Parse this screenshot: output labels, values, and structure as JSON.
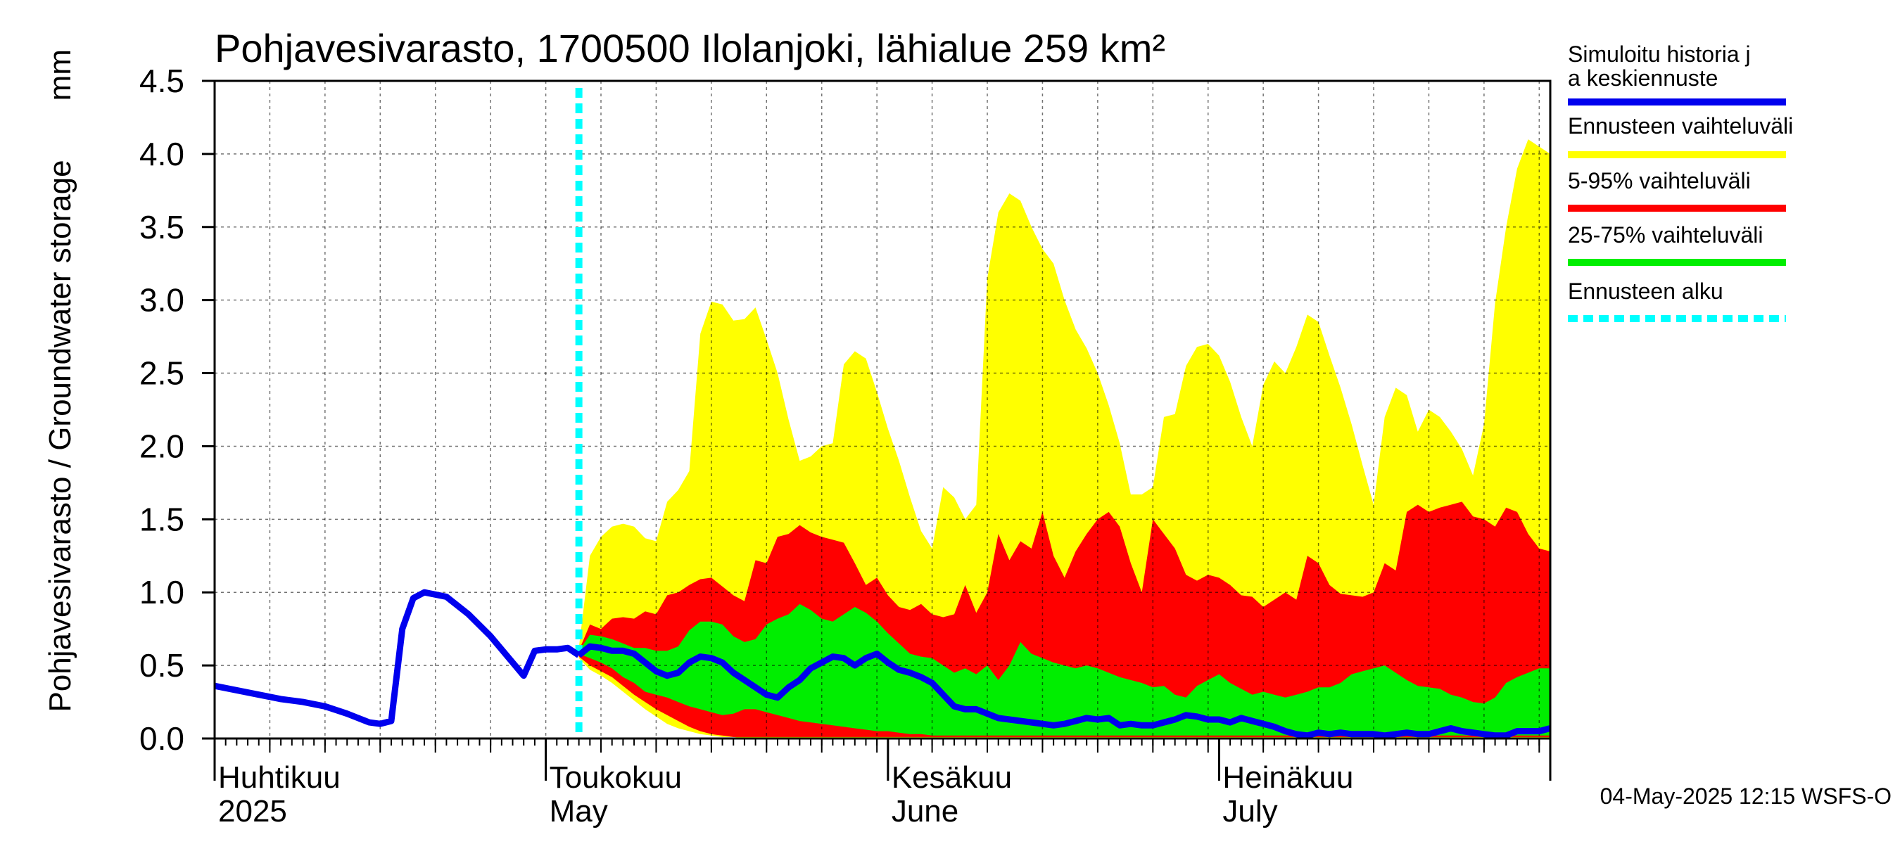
{
  "chart_data": {
    "type": "area",
    "title": "Pohjavesivarasto, 1700500 Ilolanjoki, lähialue 259 km²",
    "ylabel": "Pohjavesivarasto / Groundwater storage",
    "yunit": "mm",
    "ylim": [
      0,
      4.5
    ],
    "yticks": [
      "0.0",
      "0.5",
      "1.0",
      "1.5",
      "2.0",
      "2.5",
      "3.0",
      "3.5",
      "4.0",
      "4.5"
    ],
    "xlim": [
      "2025-04-01",
      "2025-07-31"
    ],
    "grid": true,
    "legend_position": "right",
    "forecast_start": "2025-05-04",
    "month_labels": [
      {
        "date": "2025-04-01",
        "line1": "Huhtikuu",
        "line2": "2025"
      },
      {
        "date": "2025-05-01",
        "line1": "Toukokuu",
        "line2": "May"
      },
      {
        "date": "2025-06-01",
        "line1": "Kesäkuu",
        "line2": "June"
      },
      {
        "date": "2025-07-01",
        "line1": "Heinäkuu",
        "line2": "July"
      }
    ],
    "colors": {
      "history": "#0000ee",
      "full_range": "#ffff00",
      "range_5_95": "#ff0000",
      "range_25_75": "#00ee00",
      "forecast_start": "#00ffff"
    },
    "legend": [
      {
        "key": "history",
        "label": "Simuloitu historia ja keskiennuste"
      },
      {
        "key": "full_range",
        "label": "Ennusteen vaihteluväli"
      },
      {
        "key": "range_5_95",
        "label": "5-95% vaihteluväli"
      },
      {
        "key": "range_25_75",
        "label": "25-75% vaihteluväli"
      },
      {
        "key": "forecast_start",
        "label": "Ennusteen alku"
      }
    ],
    "history": {
      "x": [
        "2025-04-01",
        "2025-04-03",
        "2025-04-05",
        "2025-04-07",
        "2025-04-09",
        "2025-04-11",
        "2025-04-13",
        "2025-04-15",
        "2025-04-16",
        "2025-04-17",
        "2025-04-18",
        "2025-04-19",
        "2025-04-20",
        "2025-04-22",
        "2025-04-24",
        "2025-04-26",
        "2025-04-28",
        "2025-04-29",
        "2025-04-30",
        "2025-05-01",
        "2025-05-02",
        "2025-05-03",
        "2025-05-04"
      ],
      "values": [
        0.36,
        0.33,
        0.3,
        0.27,
        0.25,
        0.22,
        0.17,
        0.11,
        0.1,
        0.12,
        0.75,
        0.96,
        1.0,
        0.97,
        0.85,
        0.7,
        0.52,
        0.43,
        0.6,
        0.61,
        0.61,
        0.62,
        0.57
      ]
    },
    "forecast": {
      "x": [
        "2025-05-04",
        "2025-05-05",
        "2025-05-06",
        "2025-05-07",
        "2025-05-08",
        "2025-05-09",
        "2025-05-10",
        "2025-05-11",
        "2025-05-12",
        "2025-05-13",
        "2025-05-14",
        "2025-05-15",
        "2025-05-16",
        "2025-05-17",
        "2025-05-18",
        "2025-05-19",
        "2025-05-20",
        "2025-05-21",
        "2025-05-22",
        "2025-05-23",
        "2025-05-24",
        "2025-05-25",
        "2025-05-26",
        "2025-05-27",
        "2025-05-28",
        "2025-05-29",
        "2025-05-30",
        "2025-05-31",
        "2025-06-01",
        "2025-06-02",
        "2025-06-03",
        "2025-06-04",
        "2025-06-05",
        "2025-06-06",
        "2025-06-07",
        "2025-06-08",
        "2025-06-09",
        "2025-06-10",
        "2025-06-11",
        "2025-06-12",
        "2025-06-13",
        "2025-06-14",
        "2025-06-15",
        "2025-06-16",
        "2025-06-17",
        "2025-06-18",
        "2025-06-19",
        "2025-06-20",
        "2025-06-21",
        "2025-06-22",
        "2025-06-23",
        "2025-06-24",
        "2025-06-25",
        "2025-06-26",
        "2025-06-27",
        "2025-06-28",
        "2025-06-29",
        "2025-06-30",
        "2025-07-01",
        "2025-07-02",
        "2025-07-03",
        "2025-07-04",
        "2025-07-05",
        "2025-07-06",
        "2025-07-07",
        "2025-07-08",
        "2025-07-09",
        "2025-07-10",
        "2025-07-11",
        "2025-07-12",
        "2025-07-13",
        "2025-07-14",
        "2025-07-15",
        "2025-07-16",
        "2025-07-17",
        "2025-07-18",
        "2025-07-19",
        "2025-07-20",
        "2025-07-21",
        "2025-07-22",
        "2025-07-23",
        "2025-07-24",
        "2025-07-25",
        "2025-07-26",
        "2025-07-27",
        "2025-07-28",
        "2025-07-29",
        "2025-07-30",
        "2025-07-31"
      ],
      "max": [
        0.62,
        1.25,
        1.38,
        1.45,
        1.47,
        1.45,
        1.37,
        1.35,
        1.62,
        1.7,
        1.83,
        2.77,
        2.99,
        2.97,
        2.86,
        2.87,
        2.95,
        2.73,
        2.5,
        2.18,
        1.9,
        1.93,
        2.0,
        2.02,
        2.56,
        2.65,
        2.6,
        2.37,
        2.12,
        1.9,
        1.65,
        1.42,
        1.3,
        1.72,
        1.65,
        1.5,
        1.6,
        3.15,
        3.6,
        3.73,
        3.68,
        3.5,
        3.35,
        3.25,
        3.0,
        2.8,
        2.67,
        2.5,
        2.28,
        2.02,
        1.67,
        1.67,
        1.72,
        2.2,
        2.22,
        2.55,
        2.68,
        2.7,
        2.62,
        2.44,
        2.2,
        2.0,
        2.42,
        2.58,
        2.5,
        2.68,
        2.9,
        2.85,
        2.62,
        2.4,
        2.15,
        1.87,
        1.6,
        2.2,
        2.4,
        2.35,
        2.1,
        2.25,
        2.2,
        2.1,
        1.98,
        1.8,
        2.15,
        2.98,
        3.5,
        3.9,
        4.1,
        4.05,
        4.0
      ],
      "p95": [
        0.6,
        0.78,
        0.75,
        0.82,
        0.83,
        0.82,
        0.87,
        0.85,
        0.98,
        1.0,
        1.05,
        1.09,
        1.1,
        1.04,
        0.98,
        0.94,
        1.22,
        1.2,
        1.38,
        1.4,
        1.46,
        1.41,
        1.38,
        1.36,
        1.34,
        1.2,
        1.05,
        1.1,
        0.98,
        0.9,
        0.88,
        0.92,
        0.85,
        0.83,
        0.85,
        1.05,
        0.86,
        1.0,
        1.4,
        1.22,
        1.35,
        1.3,
        1.55,
        1.25,
        1.1,
        1.28,
        1.4,
        1.5,
        1.55,
        1.45,
        1.2,
        1.0,
        1.5,
        1.4,
        1.3,
        1.12,
        1.08,
        1.12,
        1.1,
        1.05,
        0.98,
        0.97,
        0.9,
        0.95,
        1.0,
        0.95,
        1.25,
        1.2,
        1.05,
        0.99,
        0.98,
        0.97,
        1.0,
        1.2,
        1.15,
        1.55,
        1.6,
        1.55,
        1.58,
        1.6,
        1.62,
        1.52,
        1.5,
        1.45,
        1.58,
        1.55,
        1.4,
        1.3,
        1.28
      ],
      "p75": [
        0.6,
        0.71,
        0.7,
        0.68,
        0.65,
        0.62,
        0.62,
        0.6,
        0.6,
        0.63,
        0.74,
        0.8,
        0.8,
        0.78,
        0.7,
        0.66,
        0.68,
        0.78,
        0.82,
        0.85,
        0.92,
        0.88,
        0.82,
        0.8,
        0.85,
        0.9,
        0.86,
        0.8,
        0.72,
        0.65,
        0.58,
        0.56,
        0.55,
        0.5,
        0.45,
        0.48,
        0.44,
        0.5,
        0.4,
        0.5,
        0.66,
        0.58,
        0.55,
        0.52,
        0.5,
        0.48,
        0.5,
        0.48,
        0.45,
        0.42,
        0.4,
        0.38,
        0.35,
        0.36,
        0.3,
        0.28,
        0.36,
        0.4,
        0.44,
        0.38,
        0.34,
        0.3,
        0.32,
        0.3,
        0.28,
        0.3,
        0.32,
        0.35,
        0.35,
        0.38,
        0.44,
        0.46,
        0.48,
        0.5,
        0.45,
        0.4,
        0.36,
        0.35,
        0.34,
        0.3,
        0.28,
        0.25,
        0.24,
        0.28,
        0.38,
        0.42,
        0.45,
        0.48,
        0.48
      ],
      "p25": [
        0.58,
        0.55,
        0.52,
        0.48,
        0.42,
        0.38,
        0.32,
        0.3,
        0.28,
        0.25,
        0.22,
        0.2,
        0.18,
        0.16,
        0.17,
        0.2,
        0.2,
        0.18,
        0.16,
        0.14,
        0.12,
        0.11,
        0.1,
        0.09,
        0.08,
        0.07,
        0.06,
        0.05,
        0.05,
        0.04,
        0.03,
        0.03,
        0.02,
        0.02,
        0.02,
        0.02,
        0.02,
        0.02,
        0.02,
        0.02,
        0.02,
        0.02,
        0.02,
        0.02,
        0.02,
        0.02,
        0.02,
        0.02,
        0.02,
        0.02,
        0.02,
        0.02,
        0.02,
        0.02,
        0.02,
        0.02,
        0.02,
        0.02,
        0.02,
        0.02,
        0.02,
        0.02,
        0.02,
        0.02,
        0.02,
        0.02,
        0.02,
        0.02,
        0.02,
        0.02,
        0.02,
        0.02,
        0.02,
        0.02,
        0.02,
        0.02,
        0.02,
        0.02,
        0.02,
        0.02,
        0.02,
        0.02,
        0.02,
        0.02,
        0.02,
        0.02,
        0.02,
        0.02,
        0.02
      ],
      "p5": [
        0.56,
        0.5,
        0.46,
        0.42,
        0.36,
        0.3,
        0.25,
        0.2,
        0.16,
        0.12,
        0.08,
        0.05,
        0.03,
        0.02,
        0.01,
        0.01,
        0.01,
        0.01,
        0.01,
        0.01,
        0.01,
        0.01,
        0.01,
        0.01,
        0.01,
        0.01,
        0.01,
        0.01,
        0.01,
        0.01,
        0.01,
        0.01,
        0.01,
        0.01,
        0.01,
        0.01,
        0.01,
        0.01,
        0.01,
        0.01,
        0.01,
        0.01,
        0.01,
        0.01,
        0.01,
        0.01,
        0.01,
        0.01,
        0.01,
        0.01,
        0.01,
        0.01,
        0.01,
        0.01,
        0.01,
        0.01,
        0.01,
        0.01,
        0.01,
        0.01,
        0.01,
        0.01,
        0.01,
        0.01,
        0.01,
        0.01,
        0.01,
        0.01,
        0.01,
        0.01,
        0.01,
        0.01,
        0.01,
        0.01,
        0.01,
        0.01,
        0.01,
        0.01,
        0.01,
        0.01,
        0.01,
        0.01,
        0.01,
        0.01,
        0.01,
        0.01,
        0.01,
        0.01,
        0.01
      ],
      "min": [
        0.55,
        0.47,
        0.43,
        0.38,
        0.32,
        0.26,
        0.2,
        0.15,
        0.1,
        0.07,
        0.05,
        0.03,
        0.02,
        0.01,
        0.01,
        0.0,
        0.0,
        0.0,
        0.0,
        0.0,
        0.0,
        0.0,
        0.0,
        0.0,
        0.0,
        0.0,
        0.0,
        0.0,
        0.0,
        0.0,
        0.0,
        0.0,
        0.0,
        0.0,
        0.0,
        0.0,
        0.0,
        0.0,
        0.0,
        0.0,
        0.0,
        0.0,
        0.0,
        0.0,
        0.0,
        0.0,
        0.0,
        0.0,
        0.0,
        0.0,
        0.0,
        0.0,
        0.0,
        0.0,
        0.0,
        0.0,
        0.0,
        0.0,
        0.0,
        0.0,
        0.0,
        0.0,
        0.0,
        0.0,
        0.0,
        0.0,
        0.0,
        0.0,
        0.0,
        0.0,
        0.0,
        0.0,
        0.0,
        0.0,
        0.0,
        0.0,
        0.0,
        0.0,
        0.0,
        0.0,
        0.0,
        0.0,
        0.0,
        0.0,
        0.0,
        0.0,
        0.0,
        0.0,
        0.0
      ],
      "median": [
        0.57,
        0.63,
        0.62,
        0.6,
        0.6,
        0.58,
        0.52,
        0.46,
        0.43,
        0.45,
        0.52,
        0.56,
        0.55,
        0.52,
        0.45,
        0.4,
        0.35,
        0.3,
        0.28,
        0.35,
        0.4,
        0.48,
        0.52,
        0.56,
        0.55,
        0.5,
        0.55,
        0.58,
        0.52,
        0.47,
        0.45,
        0.42,
        0.38,
        0.3,
        0.22,
        0.2,
        0.2,
        0.17,
        0.14,
        0.13,
        0.12,
        0.11,
        0.1,
        0.09,
        0.1,
        0.12,
        0.14,
        0.13,
        0.14,
        0.09,
        0.1,
        0.09,
        0.09,
        0.11,
        0.13,
        0.16,
        0.15,
        0.13,
        0.13,
        0.11,
        0.14,
        0.12,
        0.1,
        0.08,
        0.05,
        0.03,
        0.02,
        0.04,
        0.03,
        0.04,
        0.03,
        0.03,
        0.03,
        0.02,
        0.03,
        0.04,
        0.03,
        0.03,
        0.05,
        0.07,
        0.05,
        0.04,
        0.03,
        0.02,
        0.02,
        0.05,
        0.05,
        0.05,
        0.07
      ]
    },
    "footer": "04-May-2025 12:15 WSFS-O"
  }
}
